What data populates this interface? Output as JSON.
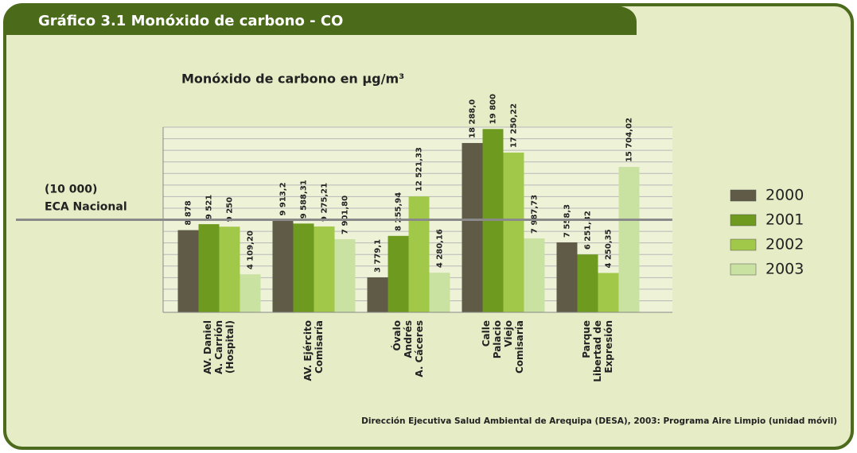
{
  "chart_data": {
    "type": "bar",
    "header": "Gráfico 3.1  Monóxido de  carbono - CO",
    "title": "Monóxido de carbono en µg/m³",
    "source": "Dirección Ejecutiva Salud Ambiental de Arequipa (DESA), 2003: Programa Aire Limpio (unidad móvil)",
    "categories": [
      [
        "AV. Daniel",
        "A. Carrión",
        "(Hospital)"
      ],
      [
        "AV. Ejército",
        "Comisaría"
      ],
      [
        "Óvalo",
        "Andrés",
        "A. Cáceres"
      ],
      [
        "Calle",
        "Palacio",
        "Viejo",
        "Comisaría"
      ],
      [
        "Parque",
        "Libertad de",
        "Expresión"
      ]
    ],
    "series": [
      {
        "name": "2000",
        "color": "#5f5b47",
        "values": [
          8878,
          9913.2,
          3779.1,
          18288.0,
          7558.3
        ],
        "value_labels": [
          "8 878",
          "9 913,2",
          "3 779,1",
          "18 288,0",
          "7 558,3"
        ]
      },
      {
        "name": "2001",
        "color": "#6e9a1f",
        "values": [
          9521,
          9588.31,
          8255.94,
          19800,
          6251.32
        ],
        "value_labels": [
          "9 521",
          "9 588,31",
          "8 255,94",
          "19 800",
          "6 251,32"
        ]
      },
      {
        "name": "2002",
        "color": "#a2c84a",
        "values": [
          9250,
          9275.21,
          12521.33,
          17250.22,
          4250.35
        ],
        "value_labels": [
          "9 250",
          "9 275,21",
          "12 521,33",
          "17 250,22",
          "4 250,35"
        ]
      },
      {
        "name": "2003",
        "color": "#c9e2a2",
        "values": [
          4109.2,
          7901.8,
          4280.16,
          7987.73,
          15704.02
        ],
        "value_labels": [
          "4 109,20",
          "7 901,80",
          "4 280,16",
          "7 987,73",
          "15 704,02"
        ]
      }
    ],
    "reference_line": {
      "value": 10000,
      "label": [
        "(10 000)",
        "ECA Nacional"
      ]
    },
    "ylim": [
      0,
      20000
    ],
    "yticks": [
      0,
      1250,
      2500,
      3750,
      5000,
      6250,
      7500,
      8750,
      10000,
      11250,
      12500,
      13750,
      15000,
      16250,
      17500,
      18750,
      20000
    ],
    "grid": true
  }
}
